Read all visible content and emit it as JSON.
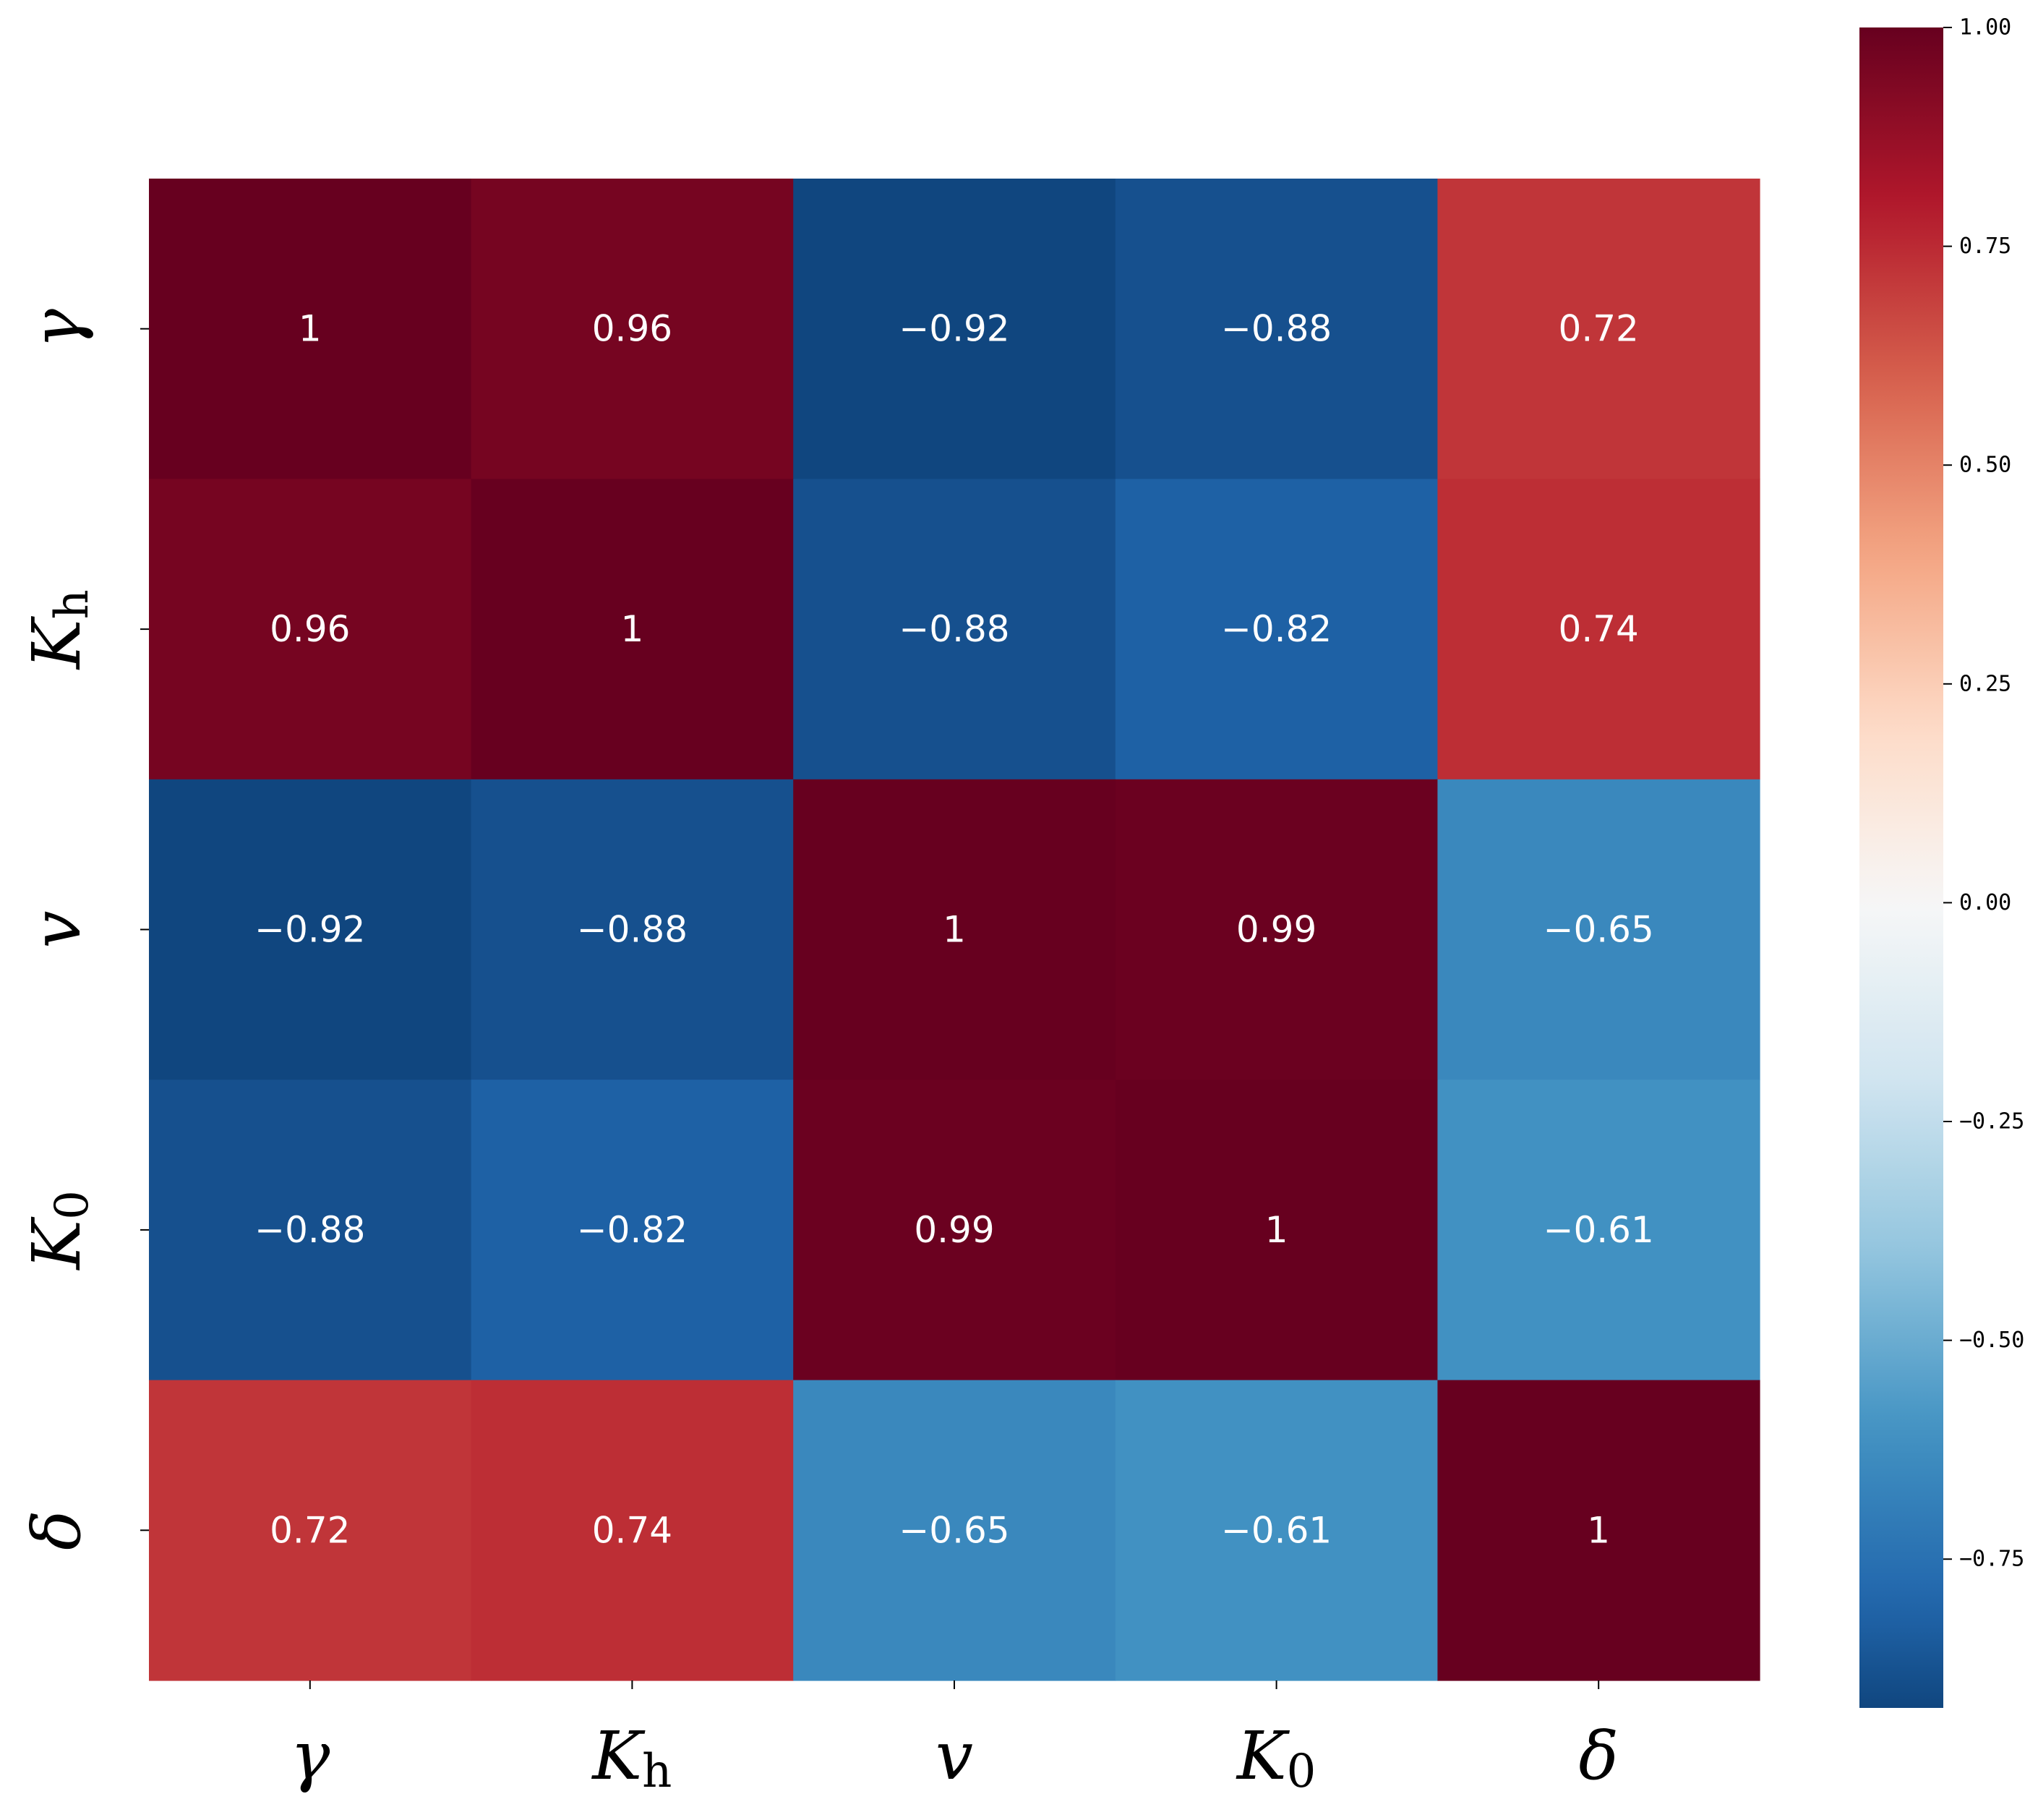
{
  "chart_data": {
    "type": "heatmap",
    "title": "",
    "variables": [
      {
        "base": "γ",
        "sub": ""
      },
      {
        "base": "K",
        "sub": "h"
      },
      {
        "base": "v",
        "sub": ""
      },
      {
        "base": "K",
        "sub": "0"
      },
      {
        "base": "δ",
        "sub": ""
      }
    ],
    "matrix": [
      [
        1,
        0.96,
        -0.92,
        -0.88,
        0.72
      ],
      [
        0.96,
        1,
        -0.88,
        -0.82,
        0.74
      ],
      [
        -0.92,
        -0.88,
        1,
        0.99,
        -0.65
      ],
      [
        -0.88,
        -0.82,
        0.99,
        1,
        -0.61
      ],
      [
        0.72,
        0.74,
        -0.65,
        -0.61,
        1
      ]
    ],
    "cell_labels": [
      [
        "1",
        "0.96",
        "−0.92",
        "−0.88",
        "0.72"
      ],
      [
        "0.96",
        "1",
        "−0.88",
        "−0.82",
        "0.74"
      ],
      [
        "−0.92",
        "−0.88",
        "1",
        "0.99",
        "−0.65"
      ],
      [
        "−0.88",
        "−0.82",
        "0.99",
        "1",
        "−0.61"
      ],
      [
        "0.72",
        "0.74",
        "−0.65",
        "−0.61",
        "1"
      ]
    ],
    "colormap": "RdBu_r",
    "colorbar": {
      "vmin": -0.92,
      "vmax": 1.0,
      "ticks": [
        1.0,
        0.75,
        0.5,
        0.25,
        0.0,
        -0.25,
        -0.5,
        -0.75
      ],
      "tick_labels": [
        "1.00",
        "0.75",
        "0.50",
        "0.25",
        "0.00",
        "−0.25",
        "−0.50",
        "−0.75"
      ]
    }
  }
}
